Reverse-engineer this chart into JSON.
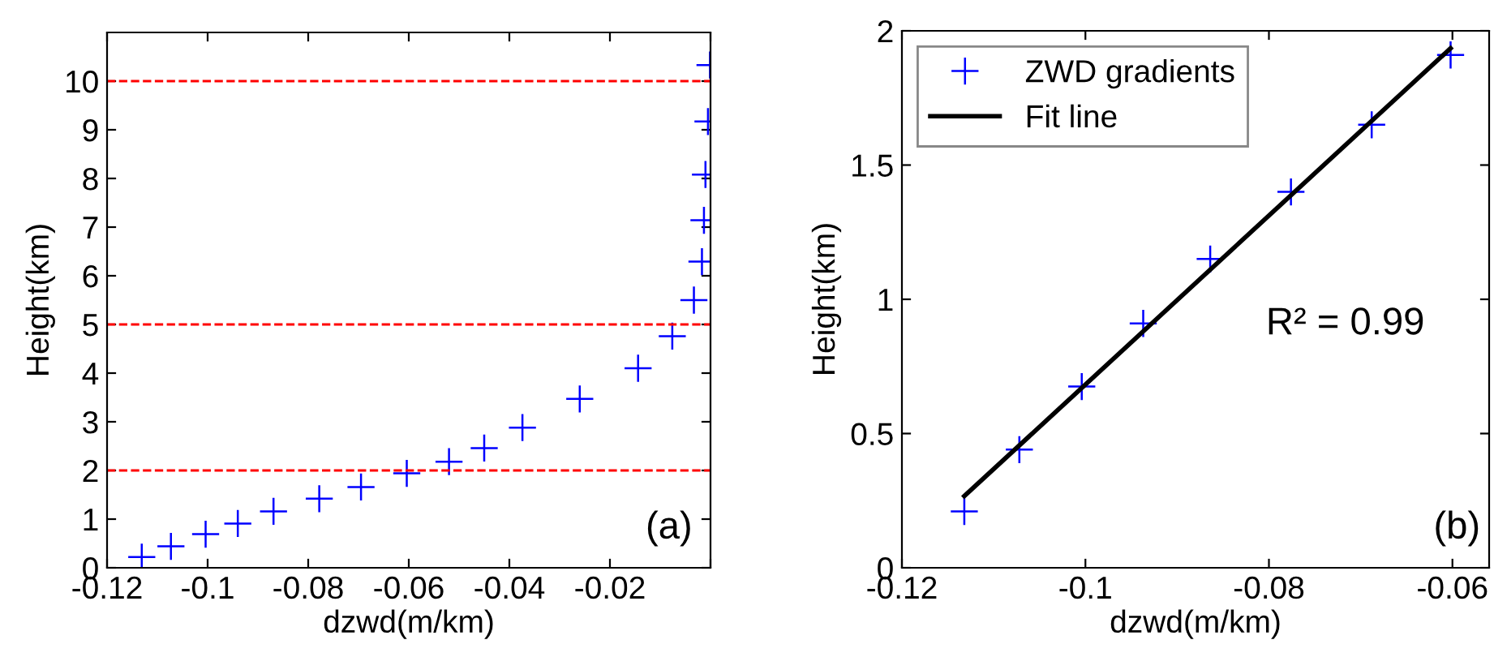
{
  "chart_data": [
    {
      "type": "scatter",
      "xlabel": "dzwd(m/km)",
      "ylabel": "Height(km)",
      "marker": "cross",
      "grid": false,
      "legend": false,
      "xlim": [
        -0.12,
        0
      ],
      "xticks": [
        -0.12,
        -0.1,
        -0.08,
        -0.06,
        -0.04,
        -0.02,
        {
          "value": 0,
          "label": null
        }
      ],
      "ylim": [
        0,
        11
      ],
      "yticks": [
        0,
        1,
        2,
        3,
        4,
        5,
        6,
        7,
        8,
        9,
        10
      ],
      "series": [
        {
          "color": "#0000ff",
          "x": [
            -0.1131,
            -0.1073,
            -0.1004,
            -0.094,
            -0.0869,
            -0.0778,
            -0.0695,
            -0.0604,
            -0.052,
            -0.045,
            -0.0374,
            -0.026,
            -0.0144,
            -0.0076,
            -0.0033,
            -0.0017,
            -0.0013,
            -0.001,
            -0.0005,
            -0.0001
          ],
          "values": [
            0.22,
            0.44,
            0.69,
            0.91,
            1.16,
            1.42,
            1.66,
            1.94,
            2.18,
            2.46,
            2.88,
            3.47,
            4.1,
            4.76,
            5.5,
            6.29,
            7.14,
            8.08,
            9.17,
            10.33
          ]
        }
      ],
      "ref_lines": [
        {
          "axis": "y",
          "value": 2,
          "color": "#ff0000",
          "line_style": "dashed"
        },
        {
          "axis": "y",
          "value": 5,
          "color": "#ff0000",
          "line_style": "dashed"
        },
        {
          "axis": "y",
          "value": 10,
          "color": "#ff0000",
          "line_style": "dashed"
        }
      ],
      "annotations": [
        "(a)"
      ]
    },
    {
      "type": "scatter",
      "xlabel": "dzwd(m/km)",
      "ylabel": "Height(km)",
      "grid": false,
      "legend": "top left",
      "xlim": [
        -0.12,
        -0.056
      ],
      "xticks": [
        -0.12,
        -0.1,
        -0.08,
        -0.06
      ],
      "ylim": [
        0,
        2
      ],
      "yticks": [
        0,
        0.5,
        1,
        1.5,
        2
      ],
      "series": [
        {
          "name": "ZWD gradients",
          "type": "scatter",
          "marker": "cross",
          "color": "#0000ff",
          "x": [
            -0.1132,
            -0.1072,
            -0.1004,
            -0.0937,
            -0.0864,
            -0.0776,
            -0.0688,
            -0.0602
          ],
          "values": [
            0.21,
            0.44,
            0.675,
            0.91,
            1.15,
            1.4,
            1.65,
            1.91
          ]
        },
        {
          "name": "Fit line",
          "type": "line",
          "marker": "none",
          "line_style": "solid",
          "color": "#000000",
          "x": [
            -0.1132,
            -0.0602
          ],
          "values": [
            0.267,
            1.935
          ]
        }
      ],
      "annotations": [
        "R² = 0.99",
        "(b)"
      ]
    }
  ]
}
